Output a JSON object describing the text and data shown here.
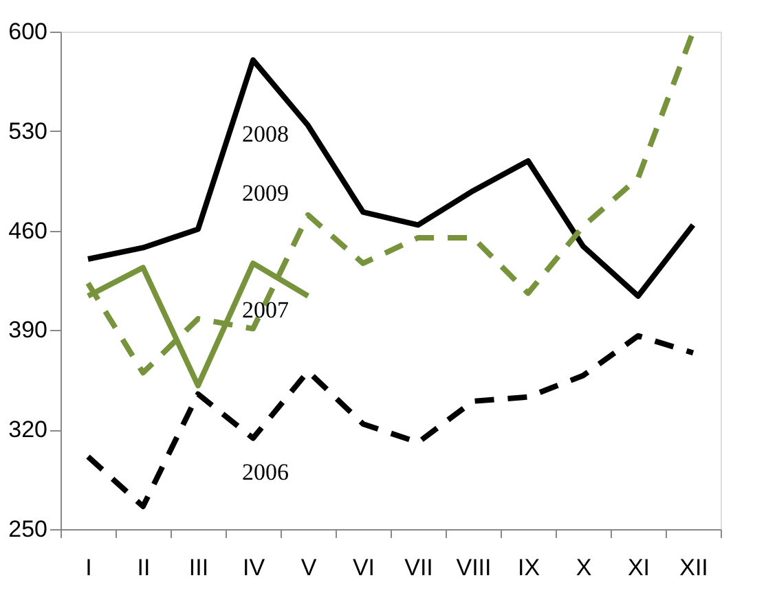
{
  "chart_data": {
    "type": "line",
    "categories": [
      "I",
      "II",
      "III",
      "IV",
      "V",
      "VI",
      "VII",
      "VIII",
      "IX",
      "X",
      "XI",
      "XII"
    ],
    "series": [
      {
        "color": "#000000",
        "line_style": "dashed",
        "values": [
          301,
          266,
          345,
          314,
          361,
          324,
          311,
          340,
          343,
          358,
          386,
          374
        ]
      },
      {
        "color": "#77933c",
        "line_style": "solid",
        "values": [
          414,
          434,
          351,
          437,
          414,
          null,
          null,
          null,
          null,
          null,
          null,
          null
        ]
      },
      {
        "color": "#000000",
        "line_style": "solid",
        "values": [
          440,
          448,
          461,
          580,
          534,
          473,
          464,
          488,
          509,
          449,
          414,
          464
        ]
      },
      {
        "color": "#77933c",
        "line_style": "dashed",
        "values": [
          423,
          360,
          398,
          391,
          471,
          437,
          455,
          455,
          416,
          463,
          497,
          600
        ]
      }
    ],
    "annotations": [
      "2006",
      "2007",
      "2008",
      "2009"
    ],
    "ylim": [
      250,
      600
    ],
    "yticks": [
      250,
      320,
      390,
      460,
      530,
      600
    ],
    "grid": false,
    "marker": "none"
  }
}
